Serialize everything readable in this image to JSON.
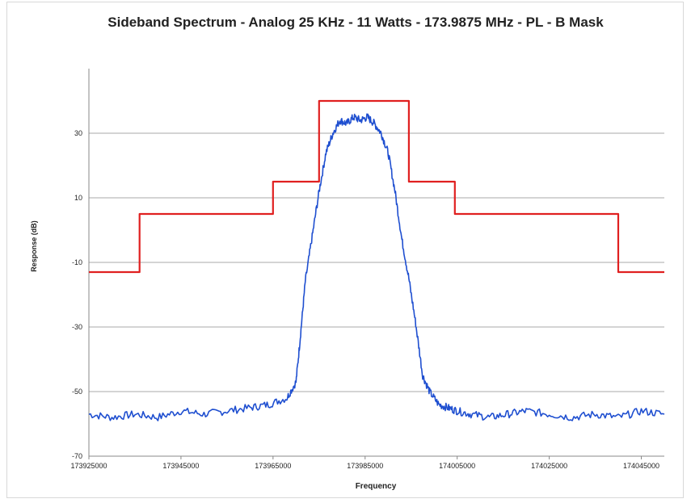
{
  "chart_data": {
    "type": "line",
    "title": "Sideband Spectrum  - Analog 25 KHz - 11 Watts - 173.9875 MHz - PL - B Mask",
    "xlabel": "Frequency",
    "ylabel": "Response (dB)",
    "xlim": [
      173925000,
      174050000
    ],
    "ylim": [
      -70,
      50
    ],
    "x_ticks": [
      173925000,
      173945000,
      173965000,
      173985000,
      174005000,
      174025000,
      174045000
    ],
    "x_tick_labels": [
      "173925000",
      "173945000",
      "173965000",
      "173985000",
      "174005000",
      "174025000",
      "174045000"
    ],
    "y_ticks": [
      -70,
      -50,
      -30,
      -10,
      10,
      30
    ],
    "y_tick_labels": [
      "-70",
      "-50",
      "-30",
      "-10",
      "10",
      "30"
    ],
    "grid": true,
    "series": [
      {
        "color": "#e02020",
        "x": [
          173925000,
          173936000,
          173936000,
          173965000,
          173965000,
          173975000,
          173975000,
          173994500,
          173994500,
          174004500,
          174004500,
          174014500,
          174014500,
          174040000,
          174040000,
          174050000
        ],
        "y": [
          -13,
          -13,
          5,
          5,
          15,
          15,
          40,
          40,
          15,
          15,
          5,
          5,
          5,
          5,
          -13,
          -13
        ]
      },
      {
        "color": "#1f4fd0",
        "x": [
          173925000,
          173930000,
          173935000,
          173940000,
          173945000,
          173950000,
          173955000,
          173960000,
          173964000,
          173968000,
          173970000,
          173971000,
          173972000,
          173973500,
          173975000,
          173976500,
          173978000,
          173979500,
          173981000,
          173982500,
          173984000,
          173985500,
          173987000,
          173988500,
          173990000,
          173991500,
          173993000,
          173994500,
          173996000,
          173997500,
          173999000,
          174001000,
          174003000,
          174005000,
          174008000,
          174012000,
          174016000,
          174020000,
          174025000,
          174030000,
          174035000,
          174040000,
          174045000,
          174050000
        ],
        "y": [
          -57,
          -58,
          -57,
          -58,
          -56,
          -57,
          -56,
          -55,
          -54,
          -52,
          -47,
          -32,
          -16,
          -2,
          12,
          24,
          30,
          34,
          33,
          35,
          34,
          35,
          33,
          30,
          24,
          12,
          -3,
          -15,
          -29,
          -45,
          -50,
          -54,
          -55,
          -56,
          -57,
          -58,
          -57,
          -56,
          -57,
          -58,
          -57,
          -58,
          -56,
          -57
        ]
      }
    ]
  }
}
